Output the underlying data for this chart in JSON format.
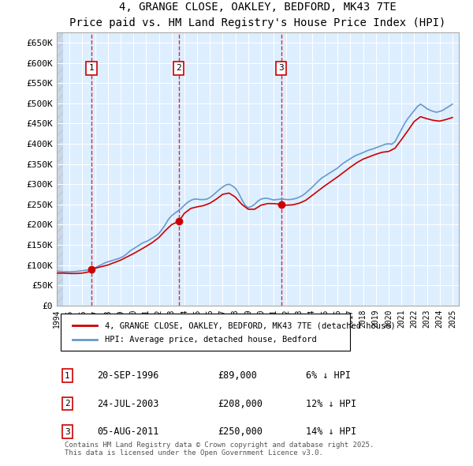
{
  "title": "4, GRANGE CLOSE, OAKLEY, BEDFORD, MK43 7TE",
  "subtitle": "Price paid vs. HM Land Registry's House Price Index (HPI)",
  "ylabel_ticks": [
    "£0",
    "£50K",
    "£100K",
    "£150K",
    "£200K",
    "£250K",
    "£300K",
    "£350K",
    "£400K",
    "£450K",
    "£500K",
    "£550K",
    "£600K",
    "£650K"
  ],
  "ytick_values": [
    0,
    50000,
    100000,
    150000,
    200000,
    250000,
    300000,
    350000,
    400000,
    450000,
    500000,
    550000,
    600000,
    650000
  ],
  "ylim": [
    0,
    675000
  ],
  "xlim_start": 1994.0,
  "xlim_end": 2025.5,
  "sale_dates": [
    1996.72,
    2003.56,
    2011.59
  ],
  "sale_prices": [
    89000,
    208000,
    250000
  ],
  "sale_labels": [
    "1",
    "2",
    "3"
  ],
  "sale_info": [
    {
      "label": "1",
      "date": "20-SEP-1996",
      "price": "£89,000",
      "hpi": "6% ↓ HPI"
    },
    {
      "label": "2",
      "date": "24-JUL-2003",
      "price": "£208,000",
      "hpi": "12% ↓ HPI"
    },
    {
      "label": "3",
      "date": "05-AUG-2011",
      "price": "£250,000",
      "hpi": "14% ↓ HPI"
    }
  ],
  "legend_entries": [
    "4, GRANGE CLOSE, OAKLEY, BEDFORD, MK43 7TE (detached house)",
    "HPI: Average price, detached house, Bedford"
  ],
  "footer": "Contains HM Land Registry data © Crown copyright and database right 2025.\nThis data is licensed under the Open Government Licence v3.0.",
  "red_color": "#cc0000",
  "blue_color": "#6699cc",
  "grid_bg": "#ddeeff",
  "hatch_color": "#bbccdd",
  "hpi_data": {
    "years": [
      1994.0,
      1994.25,
      1994.5,
      1994.75,
      1995.0,
      1995.25,
      1995.5,
      1995.75,
      1996.0,
      1996.25,
      1996.5,
      1996.75,
      1997.0,
      1997.25,
      1997.5,
      1997.75,
      1998.0,
      1998.25,
      1998.5,
      1998.75,
      1999.0,
      1999.25,
      1999.5,
      1999.75,
      2000.0,
      2000.25,
      2000.5,
      2000.75,
      2001.0,
      2001.25,
      2001.5,
      2001.75,
      2002.0,
      2002.25,
      2002.5,
      2002.75,
      2003.0,
      2003.25,
      2003.5,
      2003.75,
      2004.0,
      2004.25,
      2004.5,
      2004.75,
      2005.0,
      2005.25,
      2005.5,
      2005.75,
      2006.0,
      2006.25,
      2006.5,
      2006.75,
      2007.0,
      2007.25,
      2007.5,
      2007.75,
      2008.0,
      2008.25,
      2008.5,
      2008.75,
      2009.0,
      2009.25,
      2009.5,
      2009.75,
      2010.0,
      2010.25,
      2010.5,
      2010.75,
      2011.0,
      2011.25,
      2011.5,
      2011.75,
      2012.0,
      2012.25,
      2012.5,
      2012.75,
      2013.0,
      2013.25,
      2013.5,
      2013.75,
      2014.0,
      2014.25,
      2014.5,
      2014.75,
      2015.0,
      2015.25,
      2015.5,
      2015.75,
      2016.0,
      2016.25,
      2016.5,
      2016.75,
      2017.0,
      2017.25,
      2017.5,
      2017.75,
      2018.0,
      2018.25,
      2018.5,
      2018.75,
      2019.0,
      2019.25,
      2019.5,
      2019.75,
      2020.0,
      2020.25,
      2020.5,
      2020.75,
      2021.0,
      2021.25,
      2021.5,
      2021.75,
      2022.0,
      2022.25,
      2022.5,
      2022.75,
      2023.0,
      2023.25,
      2023.5,
      2023.75,
      2024.0,
      2024.25,
      2024.5,
      2024.75,
      2025.0
    ],
    "values": [
      85000,
      84000,
      83000,
      83500,
      83000,
      83500,
      84000,
      85000,
      86000,
      87000,
      88000,
      90000,
      93000,
      97000,
      101000,
      105000,
      108000,
      110000,
      113000,
      115000,
      118000,
      122000,
      128000,
      135000,
      140000,
      145000,
      150000,
      155000,
      158000,
      162000,
      167000,
      172000,
      178000,
      188000,
      200000,
      213000,
      222000,
      228000,
      234000,
      240000,
      248000,
      255000,
      260000,
      263000,
      263000,
      262000,
      262000,
      263000,
      267000,
      273000,
      280000,
      287000,
      293000,
      298000,
      300000,
      296000,
      290000,
      278000,
      262000,
      248000,
      242000,
      245000,
      250000,
      258000,
      263000,
      265000,
      265000,
      263000,
      261000,
      262000,
      263000,
      263000,
      262000,
      262000,
      263000,
      265000,
      268000,
      272000,
      278000,
      285000,
      292000,
      300000,
      308000,
      315000,
      320000,
      325000,
      330000,
      335000,
      340000,
      347000,
      353000,
      358000,
      363000,
      368000,
      372000,
      375000,
      378000,
      382000,
      385000,
      387000,
      390000,
      393000,
      396000,
      399000,
      400000,
      399000,
      405000,
      420000,
      435000,
      450000,
      462000,
      472000,
      482000,
      492000,
      498000,
      493000,
      487000,
      483000,
      480000,
      478000,
      480000,
      483000,
      488000,
      493000,
      498000
    ]
  },
  "price_data": {
    "years": [
      1994.0,
      1994.5,
      1995.0,
      1995.5,
      1996.0,
      1996.5,
      1996.72,
      1996.75,
      1997.0,
      1997.5,
      1998.0,
      1998.5,
      1999.0,
      1999.5,
      2000.0,
      2000.5,
      2001.0,
      2001.5,
      2002.0,
      2002.5,
      2003.0,
      2003.56,
      2004.0,
      2004.5,
      2005.0,
      2005.5,
      2006.0,
      2006.5,
      2007.0,
      2007.5,
      2008.0,
      2008.5,
      2009.0,
      2009.5,
      2010.0,
      2010.5,
      2011.0,
      2011.59,
      2012.0,
      2012.5,
      2013.0,
      2013.5,
      2014.0,
      2014.5,
      2015.0,
      2015.5,
      2016.0,
      2016.5,
      2017.0,
      2017.5,
      2018.0,
      2018.5,
      2019.0,
      2019.5,
      2020.0,
      2020.5,
      2021.0,
      2021.5,
      2022.0,
      2022.5,
      2023.0,
      2023.5,
      2024.0,
      2024.5,
      2025.0
    ],
    "values": [
      80000,
      80000,
      79000,
      79000,
      80000,
      83000,
      89000,
      89000,
      92000,
      96000,
      100000,
      106000,
      112000,
      120000,
      128000,
      137000,
      146000,
      156000,
      168000,
      185000,
      200000,
      208000,
      228000,
      240000,
      244000,
      247000,
      253000,
      263000,
      275000,
      278000,
      268000,
      250000,
      238000,
      238000,
      248000,
      252000,
      252000,
      250000,
      248000,
      249000,
      253000,
      260000,
      272000,
      284000,
      296000,
      307000,
      318000,
      330000,
      342000,
      353000,
      362000,
      368000,
      374000,
      379000,
      381000,
      389000,
      410000,
      432000,
      455000,
      467000,
      462000,
      458000,
      456000,
      460000,
      465000
    ]
  }
}
